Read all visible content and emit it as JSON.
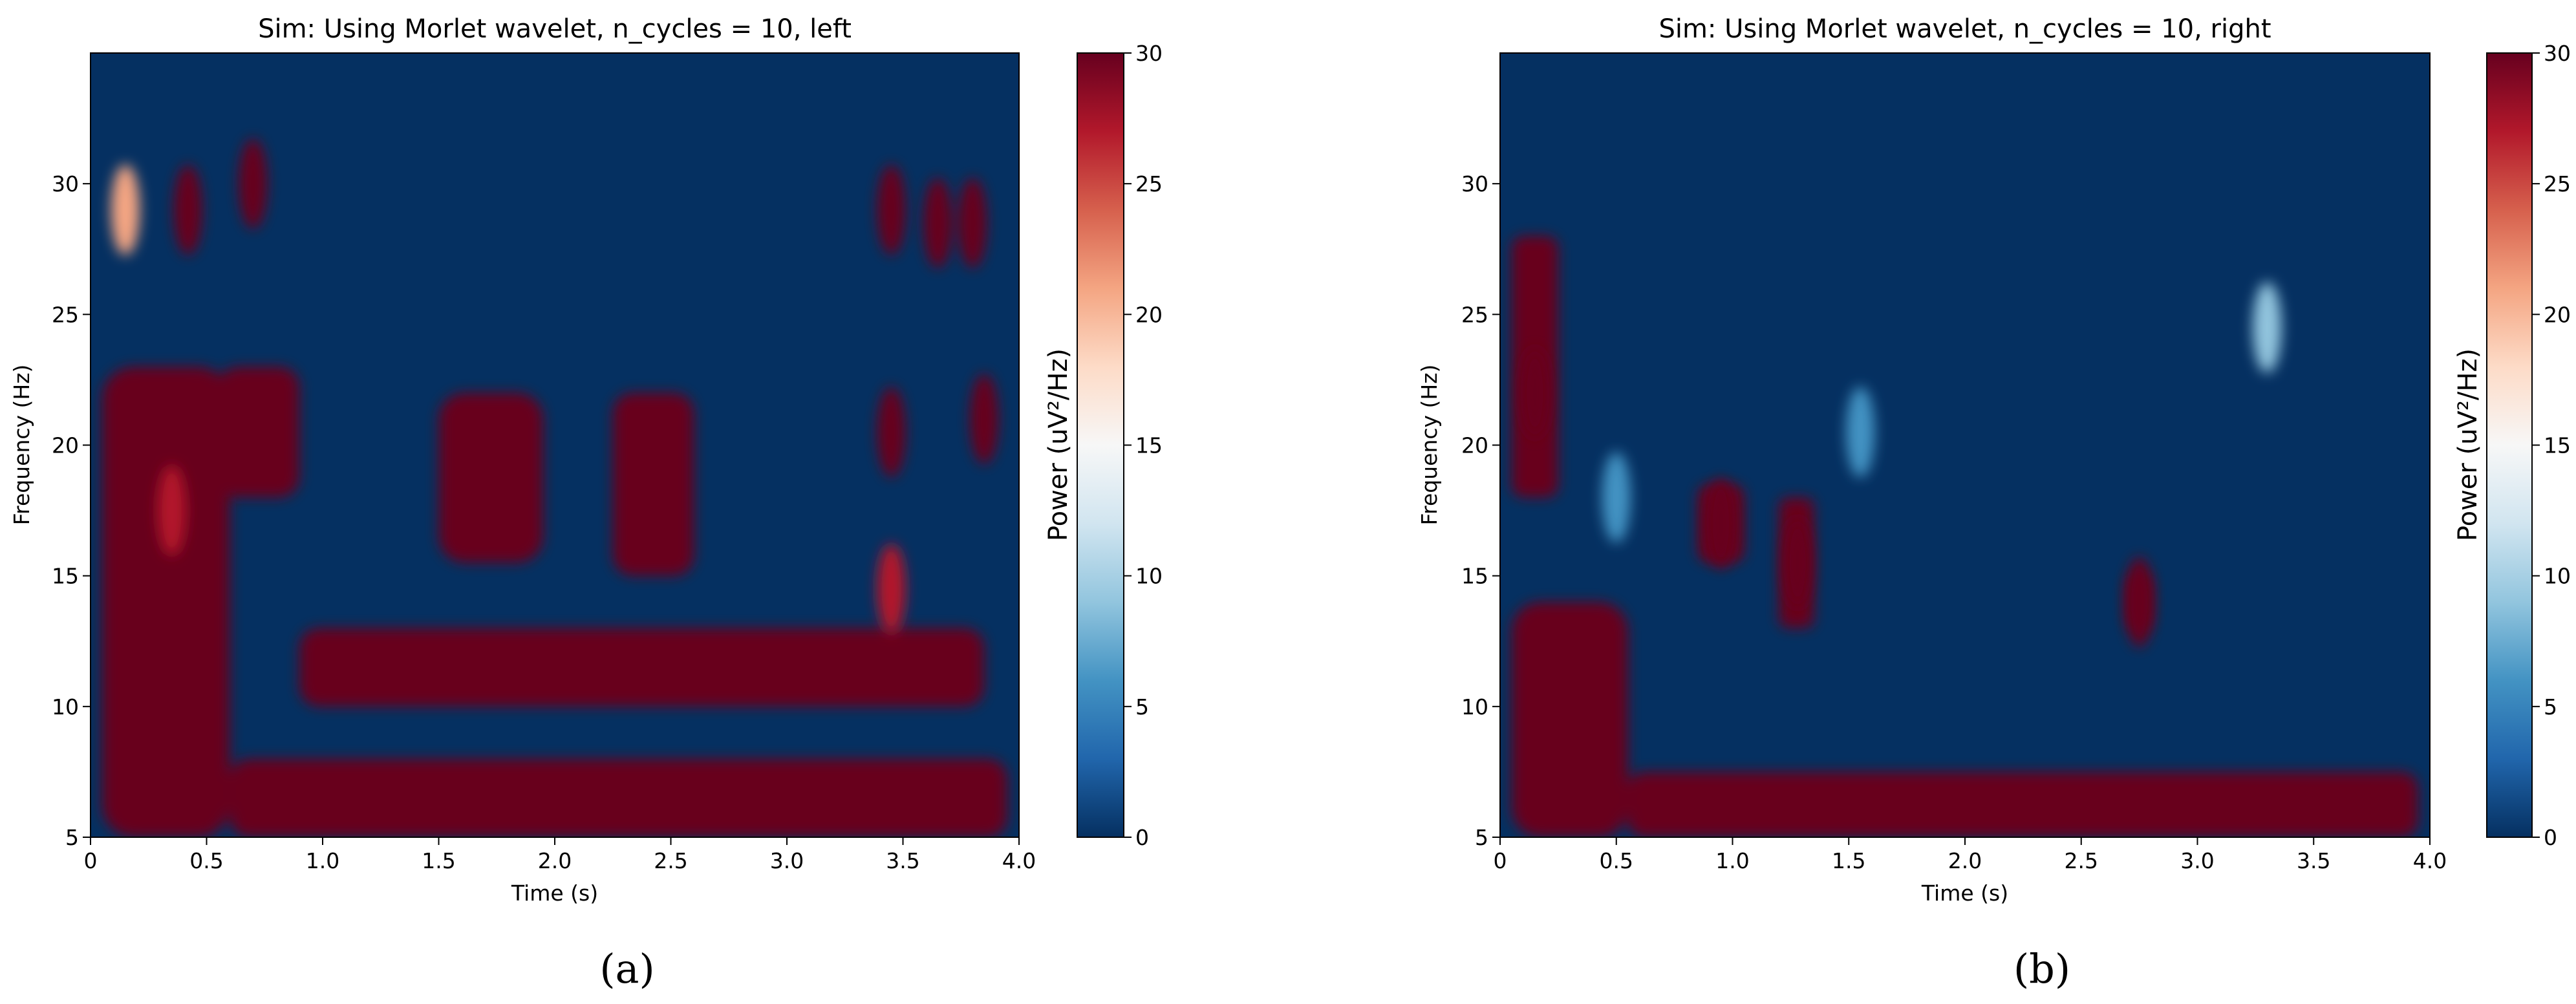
{
  "chart_data": [
    {
      "type": "heatmap",
      "title": "Sim: Using Morlet wavelet, n_cycles = 10, left",
      "xlabel": "Time (s)",
      "ylabel": "Frequency (Hz)",
      "xlim": [
        0,
        4.0
      ],
      "ylim": [
        5,
        35
      ],
      "xticks": [
        "0",
        "0.5",
        "1.0",
        "1.5",
        "2.0",
        "2.5",
        "3.0",
        "3.5",
        "4.0"
      ],
      "yticks": [
        "5",
        "10",
        "15",
        "20",
        "25",
        "30"
      ],
      "colorbar": {
        "label": "Power (uV²/Hz)",
        "range": [
          0,
          30
        ],
        "ticks": [
          "0",
          "5",
          "10",
          "15",
          "20",
          "25",
          "30"
        ],
        "colormap": "RdBu_r"
      },
      "caption": "(a)",
      "high_power_regions": [
        {
          "t": [
            0.05,
            0.6
          ],
          "f": [
            5,
            23
          ]
        },
        {
          "t": [
            0.6,
            3.95
          ],
          "f": [
            5,
            8
          ]
        },
        {
          "t": [
            0.9,
            3.85
          ],
          "f": [
            10,
            13
          ]
        },
        {
          "t": [
            1.5,
            1.95
          ],
          "f": [
            15.5,
            22
          ]
        },
        {
          "t": [
            2.25,
            2.6
          ],
          "f": [
            15,
            22
          ]
        },
        {
          "t": [
            0.55,
            0.9
          ],
          "f": [
            18,
            23
          ]
        }
      ],
      "peaks": [
        {
          "t": 0.15,
          "f": 29,
          "power": 22
        },
        {
          "t": 0.42,
          "f": 29,
          "power": 30
        },
        {
          "t": 0.7,
          "f": 30,
          "power": 30
        },
        {
          "t": 0.35,
          "f": 17.5,
          "power": 28
        },
        {
          "t": 3.45,
          "f": 29,
          "power": 30
        },
        {
          "t": 3.65,
          "f": 28.5,
          "power": 30
        },
        {
          "t": 3.8,
          "f": 28.5,
          "power": 30
        },
        {
          "t": 3.45,
          "f": 20.5,
          "power": 30
        },
        {
          "t": 3.85,
          "f": 21,
          "power": 30
        },
        {
          "t": 3.45,
          "f": 14.5,
          "power": 28
        }
      ]
    },
    {
      "type": "heatmap",
      "title": "Sim: Using Morlet wavelet, n_cycles = 10, right",
      "xlabel": "Time (s)",
      "ylabel": "Frequency (Hz)",
      "xlim": [
        0,
        4.0
      ],
      "ylim": [
        5,
        35
      ],
      "xticks": [
        "0",
        "0.5",
        "1.0",
        "1.5",
        "2.0",
        "2.5",
        "3.0",
        "3.5",
        "4.0"
      ],
      "yticks": [
        "5",
        "10",
        "15",
        "20",
        "25",
        "30"
      ],
      "colorbar": {
        "label": "Power (uV²/Hz)",
        "range": [
          0,
          30
        ],
        "ticks": [
          "0",
          "5",
          "10",
          "15",
          "20",
          "25",
          "30"
        ],
        "colormap": "RdBu_r"
      },
      "caption": "(b)",
      "high_power_regions": [
        {
          "t": [
            0.05,
            0.55
          ],
          "f": [
            5,
            14
          ]
        },
        {
          "t": [
            0.05,
            0.25
          ],
          "f": [
            18,
            28
          ]
        },
        {
          "t": [
            0.55,
            3.95
          ],
          "f": [
            5,
            7.5
          ]
        },
        {
          "t": [
            0.85,
            1.05
          ],
          "f": [
            15.5,
            18.5
          ]
        },
        {
          "t": [
            1.2,
            1.35
          ],
          "f": [
            13,
            18
          ]
        },
        {
          "t": [
            2.7,
            2.8
          ],
          "f": [
            13,
            15
          ]
        }
      ],
      "peaks": [
        {
          "t": 0.15,
          "f": 22,
          "power": 30
        },
        {
          "t": 0.95,
          "f": 17,
          "power": 30
        },
        {
          "t": 1.28,
          "f": 15.5,
          "power": 30
        },
        {
          "t": 2.75,
          "f": 14,
          "power": 30
        },
        {
          "t": 3.3,
          "f": 24.5,
          "power": 8
        },
        {
          "t": 1.55,
          "f": 20.5,
          "power": 6
        },
        {
          "t": 0.5,
          "f": 18,
          "power": 5
        }
      ]
    }
  ]
}
